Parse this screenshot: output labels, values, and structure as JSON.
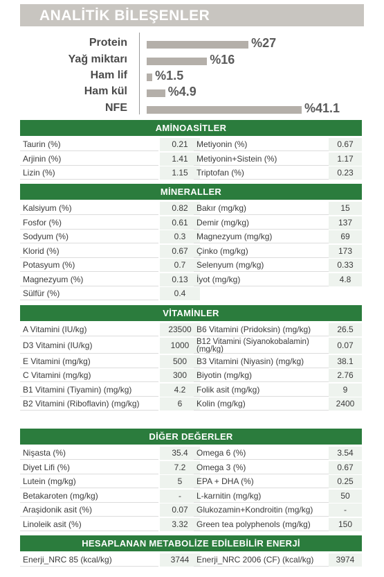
{
  "title": "ANALİTİK BİLEŞENLER",
  "composition": [
    {
      "label": "Protein",
      "value": "%27",
      "percent": 27
    },
    {
      "label": "Yağ miktarı",
      "value": "%16",
      "percent": 16
    },
    {
      "label": "Ham lif",
      "value": "%1.5",
      "percent": 1.5
    },
    {
      "label": "Ham kül",
      "value": "%4.9",
      "percent": 4.9
    },
    {
      "label": "NFE",
      "value": "%41.1",
      "percent": 41.1
    }
  ],
  "colors": {
    "header_green": "#2b7c3d",
    "bar_gray": "#b4afa9",
    "title_gray": "#c8c5c0"
  },
  "sections": {
    "amino": {
      "title": "AMİNOASİTLER",
      "rows": [
        [
          "Taurin (%)",
          "0.21",
          "Metiyonin (%)",
          "0.67"
        ],
        [
          "Arjinin (%)",
          "1.41",
          "Metiyonin+Sistein (%)",
          "1.17"
        ],
        [
          "Lizin (%)",
          "1.15",
          "Triptofan (%)",
          "0.23"
        ]
      ]
    },
    "minerals": {
      "title": "MİNERALLER",
      "rows": [
        [
          "Kalsiyum (%)",
          "0.82",
          "Bakır (mg/kg)",
          "15"
        ],
        [
          "Fosfor (%)",
          "0.61",
          "Demir (mg/kg)",
          "137"
        ],
        [
          "Sodyum (%)",
          "0.3",
          "Magnezyum (mg/kg)",
          "69"
        ],
        [
          "Klorid (%)",
          "0.67",
          "Çinko (mg/kg)",
          "173"
        ],
        [
          "Potasyum (%)",
          "0.7",
          "Selenyum (mg/kg)",
          "0.33"
        ],
        [
          "Magnezyum (%)",
          "0.13",
          "İyot (mg/kg)",
          "4.8"
        ],
        [
          "Sülfür (%)",
          "0.4",
          "",
          ""
        ]
      ]
    },
    "vitamins": {
      "title": "VİTAMİNLER",
      "rows": [
        [
          "A Vitamini (IU/kg)",
          "23500",
          "B6 Vitamini (Pridoksin) (mg/kg)",
          "26.5"
        ],
        [
          "D3 Vitamini (IU/kg)",
          "1000",
          "B12 Vitamini (Siyanokobalamin) (mg/kg)",
          "0.07"
        ],
        [
          "E Vitamini (mg/kg)",
          "500",
          "B3 Vitamini (Niyasin) (mg/kg)",
          "38.1"
        ],
        [
          "C Vitamini (mg/kg)",
          "300",
          "Biyotin (mg/kg)",
          "2.76"
        ],
        [
          "B1 Vitamini (Tiyamin) (mg/kg)",
          "4.2",
          "Folik asit (mg/kg)",
          "9"
        ],
        [
          "B2 Vitamini (Riboflavin) (mg/kg)",
          "6",
          "Kolin (mg/kg)",
          "2400"
        ]
      ]
    },
    "other": {
      "title": "DİĞER DEĞERLER",
      "rows": [
        [
          "Nişasta (%)",
          "35.4",
          "Omega 6 (%)",
          "3.54"
        ],
        [
          "Diyet Lifi (%)",
          "7.2",
          "Omega 3 (%)",
          "0.67"
        ],
        [
          "Lutein (mg/kg)",
          "5",
          "EPA + DHA (%)",
          "0.25"
        ],
        [
          "Betakaroten (mg/kg)",
          "-",
          "L-karnitin (mg/kg)",
          "50"
        ],
        [
          "Araşidonik asit (%)",
          "0.07",
          "Glukozamin+Kondroitin (mg/kg)",
          "-"
        ],
        [
          "Linoleik asit  (%)",
          "3.32",
          "Green tea polyphenols (mg/kg)",
          "150"
        ]
      ]
    },
    "energy": {
      "title": "HESAPLANAN METABOLİZE EDİLEBİLİR ENERJİ",
      "rows": [
        [
          "Enerji_NRC 85 (kcal/kg)",
          "3744",
          "Enerji_NRC 2006 (CF) (kcal/kg)",
          "3974"
        ]
      ]
    }
  }
}
